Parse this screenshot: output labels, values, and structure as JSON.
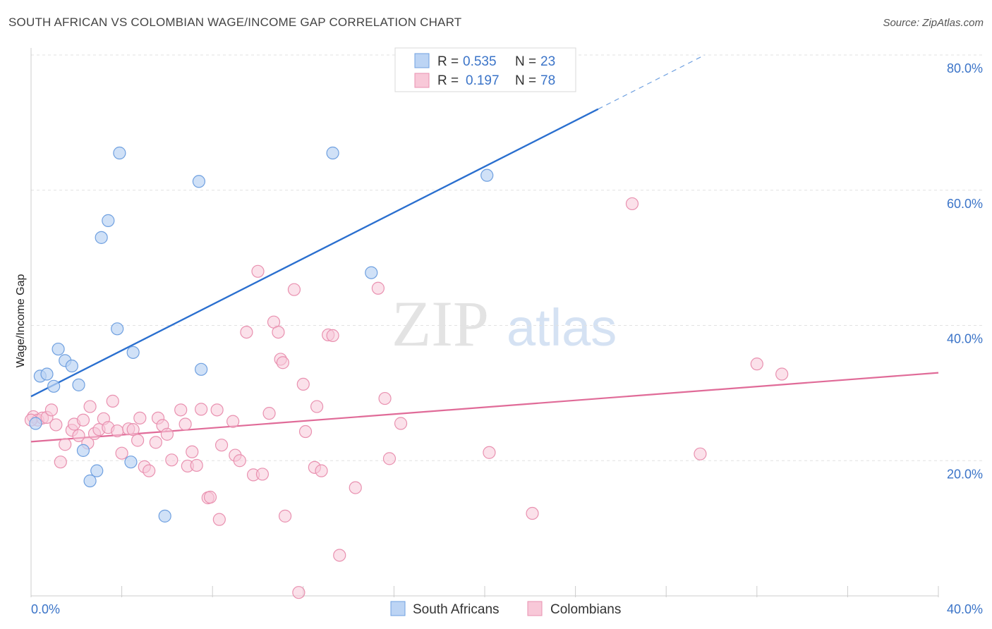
{
  "header": {
    "title": "SOUTH AFRICAN VS COLOMBIAN WAGE/INCOME GAP CORRELATION CHART",
    "source": "Source: ZipAtlas.com"
  },
  "watermark": {
    "zip": "ZIP",
    "atlas": "atlas"
  },
  "colors": {
    "blue_fill": "#bcd4f4",
    "blue_stroke": "#6fa0e0",
    "blue_line": "#2a6fcf",
    "pink_fill": "#f8c8d8",
    "pink_stroke": "#e991b0",
    "pink_line": "#e06b98",
    "tick_text": "#3b74c8"
  },
  "chart_data": {
    "type": "scatter",
    "title": "SOUTH AFRICAN VS COLOMBIAN WAGE/INCOME GAP CORRELATION CHART",
    "xlabel": "",
    "ylabel": "Wage/Income Gap",
    "xlim": [
      0,
      40
    ],
    "ylim": [
      0,
      80
    ],
    "x_tick_labels": [
      "0.0%",
      "40.0%"
    ],
    "y_ticks": [
      20,
      40,
      60,
      80
    ],
    "y_tick_labels": [
      "20.0%",
      "40.0%",
      "60.0%",
      "80.0%"
    ],
    "grid": true,
    "legend": {
      "placement": "top-center",
      "entries": [
        {
          "r_label": "R =",
          "r_value": "0.535",
          "n_label": "N =",
          "n_value": "23"
        },
        {
          "r_label": "R =",
          "r_value": "0.197",
          "n_label": "N =",
          "n_value": "78"
        }
      ]
    },
    "series": [
      {
        "name": "South Africans",
        "color": "#6fa0e0",
        "points": [
          [
            0.2,
            25.5
          ],
          [
            0.4,
            32.5
          ],
          [
            0.7,
            32.8
          ],
          [
            1.0,
            31.0
          ],
          [
            1.2,
            36.5
          ],
          [
            1.5,
            34.8
          ],
          [
            1.8,
            34.0
          ],
          [
            2.1,
            31.2
          ],
          [
            2.3,
            21.5
          ],
          [
            2.6,
            17.0
          ],
          [
            2.9,
            18.5
          ],
          [
            3.1,
            53.0
          ],
          [
            3.4,
            55.5
          ],
          [
            3.8,
            39.5
          ],
          [
            3.9,
            65.5
          ],
          [
            4.4,
            19.8
          ],
          [
            4.5,
            36.0
          ],
          [
            5.9,
            11.8
          ],
          [
            7.4,
            61.3
          ],
          [
            7.5,
            33.5
          ],
          [
            13.3,
            65.5
          ],
          [
            15.0,
            47.8
          ],
          [
            20.1,
            62.2
          ]
        ],
        "trend": {
          "x0": 0.0,
          "y0": 29.5,
          "x1": 25.0,
          "y1": 72.0,
          "dash_x1": 29.7,
          "dash_y1": 80.0
        }
      },
      {
        "name": "Colombians",
        "color": "#e991b0",
        "points": [
          [
            0.1,
            26.5
          ],
          [
            0.3,
            26.0
          ],
          [
            0.5,
            26.3
          ],
          [
            0.7,
            26.4
          ],
          [
            0.9,
            27.5
          ],
          [
            1.1,
            25.3
          ],
          [
            1.3,
            19.8
          ],
          [
            1.5,
            22.4
          ],
          [
            1.8,
            24.5
          ],
          [
            1.9,
            25.4
          ],
          [
            2.1,
            23.7
          ],
          [
            2.3,
            26.0
          ],
          [
            2.5,
            22.6
          ],
          [
            2.6,
            28.0
          ],
          [
            2.8,
            24.0
          ],
          [
            3.0,
            24.6
          ],
          [
            3.2,
            26.2
          ],
          [
            3.4,
            24.9
          ],
          [
            3.6,
            28.8
          ],
          [
            3.8,
            24.4
          ],
          [
            4.0,
            21.1
          ],
          [
            4.3,
            24.7
          ],
          [
            4.5,
            24.6
          ],
          [
            4.7,
            23.0
          ],
          [
            4.8,
            26.3
          ],
          [
            5.0,
            19.1
          ],
          [
            5.2,
            18.5
          ],
          [
            5.5,
            22.7
          ],
          [
            5.6,
            26.3
          ],
          [
            5.8,
            25.2
          ],
          [
            6.0,
            23.9
          ],
          [
            6.2,
            20.1
          ],
          [
            6.6,
            27.5
          ],
          [
            6.8,
            25.4
          ],
          [
            6.9,
            19.2
          ],
          [
            7.1,
            21.3
          ],
          [
            7.3,
            19.3
          ],
          [
            7.5,
            27.6
          ],
          [
            7.8,
            14.5
          ],
          [
            7.9,
            14.6
          ],
          [
            8.2,
            27.5
          ],
          [
            8.3,
            11.3
          ],
          [
            8.4,
            22.3
          ],
          [
            8.9,
            25.8
          ],
          [
            9.0,
            20.8
          ],
          [
            9.2,
            20.0
          ],
          [
            9.5,
            39.0
          ],
          [
            9.8,
            17.9
          ],
          [
            10.0,
            48.0
          ],
          [
            10.2,
            18.0
          ],
          [
            10.5,
            27.0
          ],
          [
            10.7,
            40.5
          ],
          [
            10.9,
            39.0
          ],
          [
            11.0,
            35.0
          ],
          [
            11.1,
            34.5
          ],
          [
            11.2,
            11.8
          ],
          [
            11.6,
            45.3
          ],
          [
            11.8,
            0.5
          ],
          [
            12.0,
            31.3
          ],
          [
            12.1,
            24.3
          ],
          [
            12.5,
            19.0
          ],
          [
            12.6,
            28.0
          ],
          [
            12.8,
            18.5
          ],
          [
            13.1,
            38.6
          ],
          [
            13.3,
            38.5
          ],
          [
            13.6,
            6.0
          ],
          [
            14.3,
            16.0
          ],
          [
            15.3,
            45.5
          ],
          [
            15.6,
            29.2
          ],
          [
            15.8,
            20.3
          ],
          [
            16.3,
            25.5
          ],
          [
            20.2,
            21.2
          ],
          [
            22.1,
            12.2
          ],
          [
            26.5,
            58.0
          ],
          [
            29.5,
            21.0
          ],
          [
            32.0,
            34.3
          ],
          [
            33.1,
            32.8
          ],
          [
            0.0,
            26.0
          ]
        ],
        "trend": {
          "x0": 0.0,
          "y0": 22.8,
          "x1": 40.0,
          "y1": 33.0
        }
      }
    ]
  }
}
